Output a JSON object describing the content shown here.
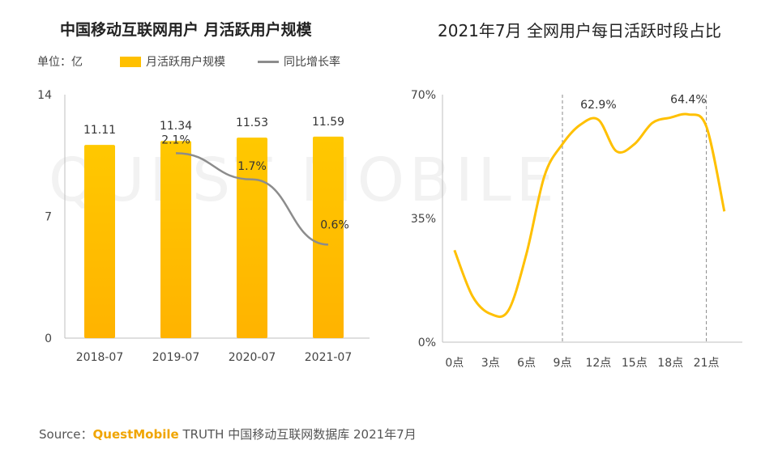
{
  "source": {
    "prefix": "Source：",
    "brand": "QuestMobile",
    "rest": " TRUTH 中国移动互联网数据库 2021年7月"
  },
  "watermark": "QUEST MOBILE",
  "colors": {
    "bar": "#FFC000",
    "line": "#8c8c8c",
    "curve": "#FFC000",
    "dash": "#888888",
    "axis": "#bfbfbf"
  },
  "chart_data": [
    {
      "type": "bar",
      "title": "中国移动互联网用户 月活跃用户规模",
      "unit_label": "单位：亿",
      "categories": [
        "2018-07",
        "2019-07",
        "2020-07",
        "2021-07"
      ],
      "series": [
        {
          "name": "月活跃用户规模",
          "values": [
            11.11,
            11.34,
            11.53,
            11.59
          ],
          "labels": [
            "11.11",
            "11.34",
            "11.53",
            "11.59"
          ]
        },
        {
          "name": "同比增长率",
          "type": "line",
          "values": [
            null,
            2.1,
            1.7,
            0.6
          ],
          "labels": [
            "",
            "2.1%",
            "1.7%",
            "0.6%"
          ]
        }
      ],
      "yticks": [
        "0",
        "7",
        "14"
      ],
      "ylim": [
        0,
        14
      ]
    },
    {
      "type": "line",
      "title": "2021年7月 全网用户每日活跃时段占比",
      "x": [
        0,
        1.5,
        3,
        4.5,
        6,
        7.5,
        9,
        10.5,
        12,
        13.5,
        15,
        16.5,
        18,
        19.5,
        21,
        22.5
      ],
      "y": [
        26,
        13,
        8,
        9,
        25,
        47,
        56,
        61.5,
        62.9,
        54,
        56,
        62,
        63.5,
        64.4,
        61,
        37
      ],
      "xticks": [
        "0点",
        "3点",
        "6点",
        "9点",
        "12点",
        "15点",
        "18点",
        "21点"
      ],
      "xtick_values": [
        0,
        3,
        6,
        9,
        12,
        15,
        18,
        21
      ],
      "yticks": [
        "0%",
        "35%",
        "70%"
      ],
      "ylim": [
        0,
        70
      ],
      "xlim": [
        -1,
        24
      ],
      "reference_lines_x": [
        9,
        21
      ],
      "annotations": [
        {
          "x": 12,
          "y": 62.9,
          "text": "62.9%"
        },
        {
          "x": 19.5,
          "y": 64.4,
          "text": "64.4%"
        }
      ]
    }
  ]
}
